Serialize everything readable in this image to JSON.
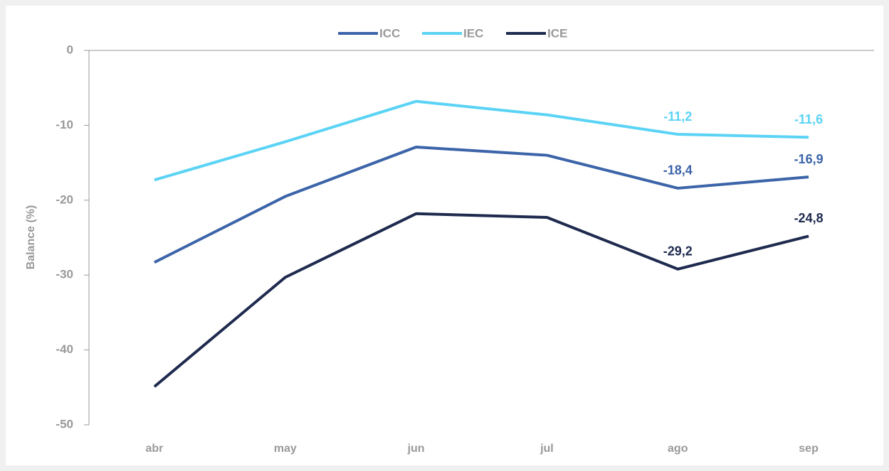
{
  "chart_data": {
    "type": "line",
    "categories": [
      "abr",
      "may",
      "jun",
      "jul",
      "ago",
      "sep"
    ],
    "series": [
      {
        "name": "ICC",
        "color": "#3c64a8",
        "values": [
          -28.3,
          -19.5,
          -12.9,
          -14.0,
          -18.4,
          -16.9
        ],
        "value_labels": [
          null,
          null,
          null,
          null,
          "-18,4",
          "-16,9"
        ]
      },
      {
        "name": "IEC",
        "color": "#5bd3f5",
        "values": [
          -17.3,
          -12.2,
          -6.8,
          -8.6,
          -11.2,
          -11.6
        ],
        "value_labels": [
          null,
          null,
          null,
          null,
          "-11,2",
          "-11,6"
        ]
      },
      {
        "name": "ICE",
        "color": "#1f2a4f",
        "values": [
          -44.9,
          -30.3,
          -21.8,
          -22.3,
          -29.2,
          -24.8
        ],
        "value_labels": [
          null,
          null,
          null,
          null,
          "-29,2",
          "-24,8"
        ]
      }
    ],
    "y_label": "Balance (%)",
    "ylim": [
      -50,
      0
    ],
    "yticks": [
      0,
      -10,
      -20,
      -30,
      -40,
      -50
    ],
    "legend": "top"
  }
}
